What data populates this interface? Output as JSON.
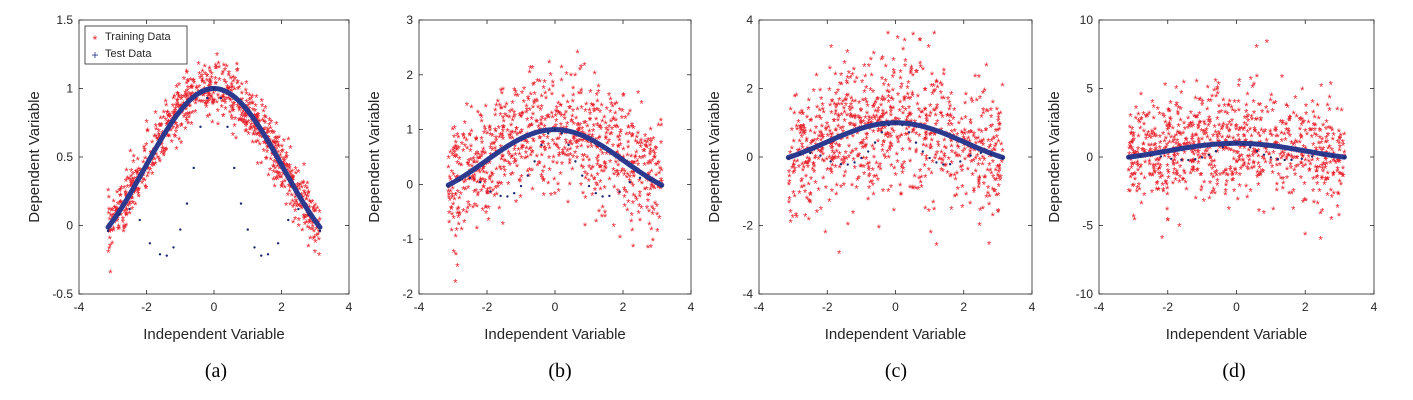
{
  "chart_data": [
    {
      "type": "scatter",
      "caption": "(a)",
      "xlabel": "Independent Variable",
      "ylabel": "Dependent Variable",
      "xlim": [
        -4,
        4
      ],
      "ylim": [
        -0.5,
        1.5
      ],
      "xticks": [
        "-4",
        "-2",
        "0",
        "2",
        "4"
      ],
      "yticks": [
        "-0.5",
        "0",
        "0.5",
        "1",
        "1.5"
      ],
      "noise_sd": 0.1,
      "legend": {
        "placement": "top-left",
        "entries": [
          "Training Data",
          "Test Data"
        ]
      },
      "series": [
        {
          "name": "Training Data",
          "marker": "*",
          "color": "#e8202a",
          "description": "sinc(x) plus Gaussian noise, x in [-3.14, 3.14]"
        },
        {
          "name": "Test Data",
          "marker": "+",
          "color": "#2b3a8f",
          "x": [
            -3.14,
            -2.8,
            -2.5,
            -2.2,
            -1.9,
            -1.6,
            -1.4,
            -1.2,
            -1.0,
            -0.8,
            -0.6,
            -0.4,
            -0.2,
            0.0,
            0.2,
            0.4,
            0.6,
            0.8,
            1.0,
            1.2,
            1.4,
            1.6,
            1.9,
            2.2,
            2.5,
            2.8,
            3.14
          ],
          "y": [
            -0.04,
            0.08,
            0.12,
            0.04,
            -0.13,
            -0.21,
            -0.22,
            -0.16,
            -0.03,
            0.16,
            0.42,
            0.72,
            0.93,
            1.0,
            0.93,
            0.72,
            0.42,
            0.16,
            -0.03,
            -0.16,
            -0.22,
            -0.21,
            -0.13,
            0.04,
            0.12,
            0.08,
            -0.04
          ]
        }
      ]
    },
    {
      "type": "scatter",
      "caption": "(b)",
      "xlabel": "Independent Variable",
      "ylabel": "Dependent Variable",
      "xlim": [
        -4,
        4
      ],
      "ylim": [
        -2,
        3
      ],
      "xticks": [
        "-4",
        "-2",
        "0",
        "2",
        "4"
      ],
      "yticks": [
        "-2",
        "-1",
        "0",
        "1",
        "2",
        "3"
      ],
      "noise_sd": 0.55,
      "series": [
        {
          "name": "Training Data",
          "marker": "*",
          "color": "#e8202a"
        },
        {
          "name": "Test Data",
          "marker": "+",
          "color": "#2b3a8f",
          "x": [
            -3.14,
            -2.8,
            -2.5,
            -2.2,
            -1.9,
            -1.6,
            -1.4,
            -1.2,
            -1.0,
            -0.8,
            -0.6,
            -0.4,
            -0.2,
            0.0,
            0.2,
            0.4,
            0.6,
            0.8,
            1.0,
            1.2,
            1.4,
            1.6,
            1.9,
            2.2,
            2.5,
            2.8,
            3.14
          ],
          "y": [
            -0.04,
            0.08,
            0.12,
            0.04,
            -0.13,
            -0.21,
            -0.22,
            -0.16,
            -0.03,
            0.16,
            0.42,
            0.72,
            0.93,
            1.0,
            0.93,
            0.72,
            0.42,
            0.16,
            -0.03,
            -0.16,
            -0.22,
            -0.21,
            -0.13,
            0.04,
            0.12,
            0.08,
            -0.04
          ]
        }
      ]
    },
    {
      "type": "scatter",
      "caption": "(c)",
      "xlabel": "Independent Variable",
      "ylabel": "Dependent Variable",
      "xlim": [
        -4,
        4
      ],
      "ylim": [
        -4,
        4
      ],
      "xticks": [
        "-4",
        "-2",
        "0",
        "2",
        "4"
      ],
      "yticks": [
        "-4",
        "-2",
        "0",
        "2",
        "4"
      ],
      "noise_sd": 1.0,
      "series": [
        {
          "name": "Training Data",
          "marker": "*",
          "color": "#e8202a"
        },
        {
          "name": "Test Data",
          "marker": "+",
          "color": "#2b3a8f",
          "x": [
            -3.14,
            -2.8,
            -2.5,
            -2.2,
            -1.9,
            -1.6,
            -1.4,
            -1.2,
            -1.0,
            -0.8,
            -0.6,
            -0.4,
            -0.2,
            0.0,
            0.2,
            0.4,
            0.6,
            0.8,
            1.0,
            1.2,
            1.4,
            1.6,
            1.9,
            2.2,
            2.5,
            2.8,
            3.14
          ],
          "y": [
            -0.04,
            0.08,
            0.12,
            0.04,
            -0.13,
            -0.21,
            -0.22,
            -0.16,
            -0.03,
            0.16,
            0.42,
            0.72,
            0.93,
            1.0,
            0.93,
            0.72,
            0.42,
            0.16,
            -0.03,
            -0.16,
            -0.22,
            -0.21,
            -0.13,
            0.04,
            0.12,
            0.08,
            -0.04
          ]
        }
      ]
    },
    {
      "type": "scatter",
      "caption": "(d)",
      "xlabel": "Independent Variable",
      "ylabel": "Dependent Variable",
      "xlim": [
        -4,
        4
      ],
      "ylim": [
        -10,
        10
      ],
      "xticks": [
        "-4",
        "-2",
        "0",
        "2",
        "4"
      ],
      "yticks": [
        "-10",
        "-5",
        "0",
        "5",
        "10"
      ],
      "noise_sd": 2.0,
      "series": [
        {
          "name": "Training Data",
          "marker": "*",
          "color": "#e8202a"
        },
        {
          "name": "Test Data",
          "marker": "+",
          "color": "#2b3a8f",
          "x": [
            -3.14,
            -2.8,
            -2.5,
            -2.2,
            -1.9,
            -1.6,
            -1.4,
            -1.2,
            -1.0,
            -0.8,
            -0.6,
            -0.4,
            -0.2,
            0.0,
            0.2,
            0.4,
            0.6,
            0.8,
            1.0,
            1.2,
            1.4,
            1.6,
            1.9,
            2.2,
            2.5,
            2.8,
            3.14
          ],
          "y": [
            -0.04,
            0.08,
            0.12,
            0.04,
            -0.13,
            -0.21,
            -0.22,
            -0.16,
            -0.03,
            0.16,
            0.42,
            0.72,
            0.93,
            1.0,
            0.93,
            0.72,
            0.42,
            0.16,
            -0.03,
            -0.16,
            -0.22,
            -0.21,
            -0.13,
            0.04,
            0.12,
            0.08,
            -0.04
          ]
        }
      ]
    }
  ]
}
